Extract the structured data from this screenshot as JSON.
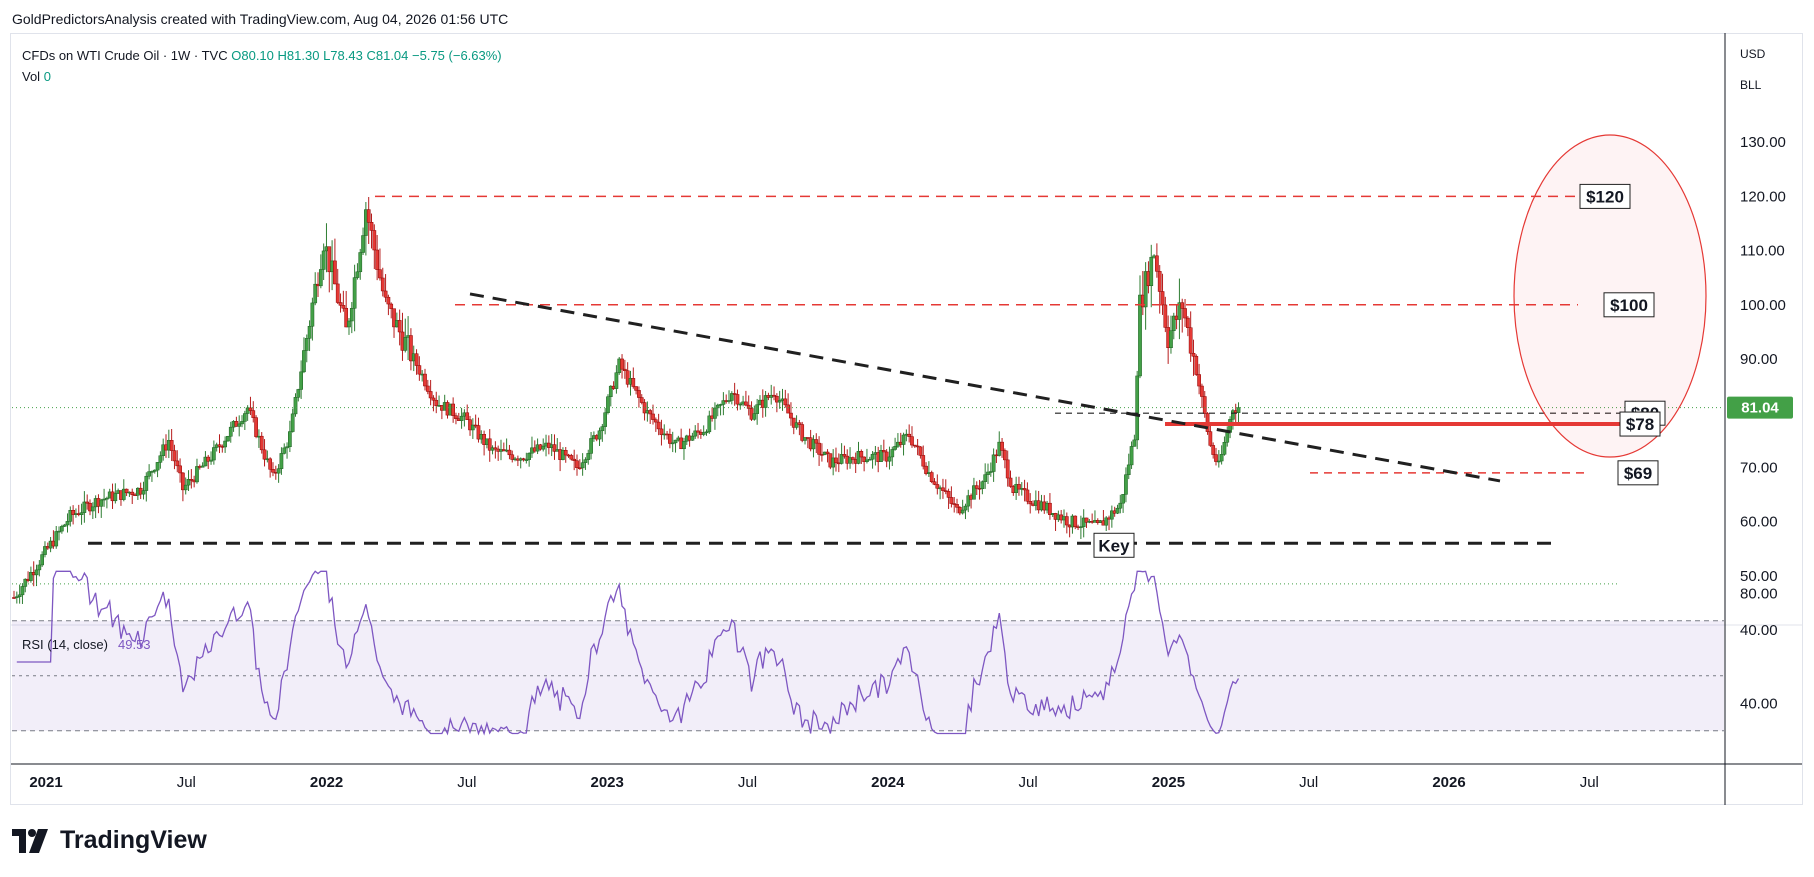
{
  "header": {
    "text": "GoldPredictorsAnalysis created with TradingView.com, Aug 04, 2026 01:56 UTC"
  },
  "legend": {
    "symbol": "CFDs on WTI Crude Oil · 1W · TVC",
    "open": "O80.10",
    "high": "H81.30",
    "low": "L78.43",
    "close": "C81.04",
    "change": "−5.75 (−6.63%)",
    "vol_label": "Vol",
    "vol_value": "0"
  },
  "currency": {
    "items": [
      "USD",
      "BLL"
    ]
  },
  "brand": {
    "name": "TradingView",
    "logo_icon": "tradingview-logo-icon"
  },
  "colors": {
    "up": "#089981",
    "down": "#f23645",
    "candle_up_fill": "#43a047",
    "candle_down_fill": "#e53935",
    "annotation": "#e53935",
    "trend": "#202020",
    "rsi": "#7e57c2",
    "price_tag": "#43a047"
  },
  "chart_data": [
    {
      "type": "candlestick",
      "title": "CFDs on WTI Crude Oil · 1W · TVC",
      "timeframe": "1W",
      "x_ticks": [
        "2021",
        "Jul",
        "2022",
        "Jul",
        "2023",
        "Jul",
        "2024",
        "Jul",
        "2025",
        "Jul",
        "2026",
        "Jul"
      ],
      "y_ticks": [
        "130.00",
        "120.00",
        "110.00",
        "100.00",
        "90.00",
        "80.00",
        "70.00",
        "60.00",
        "50.00",
        "40.00"
      ],
      "ylim": [
        38,
        132
      ],
      "last_price": "81.04",
      "anchors": [
        [
          0,
          46
        ],
        [
          20,
          61
        ],
        [
          30,
          64
        ],
        [
          45,
          66
        ],
        [
          55,
          75
        ],
        [
          60,
          66
        ],
        [
          70,
          72
        ],
        [
          83,
          81
        ],
        [
          92,
          68
        ],
        [
          98,
          76
        ],
        [
          110,
          112
        ],
        [
          118,
          95
        ],
        [
          125,
          118
        ],
        [
          132,
          100
        ],
        [
          140,
          92
        ],
        [
          150,
          82
        ],
        [
          160,
          79
        ],
        [
          170,
          73
        ],
        [
          180,
          72
        ],
        [
          190,
          74
        ],
        [
          200,
          70
        ],
        [
          208,
          77
        ],
        [
          215,
          89
        ],
        [
          225,
          80
        ],
        [
          235,
          74
        ],
        [
          245,
          77
        ],
        [
          255,
          84
        ],
        [
          262,
          80
        ],
        [
          270,
          84
        ],
        [
          280,
          76
        ],
        [
          290,
          71
        ],
        [
          300,
          72
        ],
        [
          310,
          72
        ],
        [
          318,
          76
        ],
        [
          325,
          69
        ],
        [
          335,
          62
        ],
        [
          345,
          68
        ],
        [
          350,
          74
        ],
        [
          355,
          66
        ],
        [
          365,
          63
        ],
        [
          375,
          60
        ],
        [
          385,
          59
        ],
        [
          393,
          63
        ],
        [
          398,
          76
        ],
        [
          400,
          100
        ],
        [
          405,
          110
        ],
        [
          410,
          94
        ],
        [
          415,
          100
        ],
        [
          420,
          88
        ],
        [
          425,
          74
        ],
        [
          428,
          70
        ],
        [
          433,
          81
        ],
        [
          435,
          81.04
        ]
      ],
      "annotations": {
        "labels": [
          "$120",
          "$100",
          "$80",
          "$78",
          "$69",
          "Key"
        ],
        "levels": [
          120,
          100,
          80,
          78,
          69,
          56
        ]
      }
    },
    {
      "type": "line",
      "title": "RSI (14, close)",
      "series": [
        {
          "name": "RSI (14, close)",
          "last": "49.53"
        }
      ],
      "y_ticks": [
        "80.00",
        "40.00"
      ],
      "ylim": [
        27,
        90
      ],
      "bands": [
        70,
        30
      ]
    }
  ]
}
